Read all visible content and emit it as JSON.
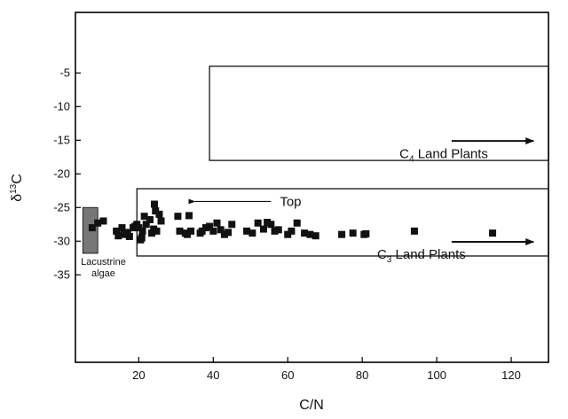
{
  "chart_data": {
    "type": "scatter",
    "xlabel": "C/N",
    "ylabel": {
      "base": "δ",
      "sup": "13",
      "tail": "C"
    },
    "xlim": [
      3,
      130
    ],
    "ylim": [
      -48,
      4
    ],
    "xticks": [
      20,
      40,
      60,
      80,
      100,
      120
    ],
    "yticks": [
      -35,
      -30,
      -25,
      -20,
      -15,
      -10,
      -5
    ],
    "grid": false,
    "marker": "square",
    "colors": {
      "points": "#111111",
      "lacustrine_fill": "#777777",
      "frame": "#000000"
    },
    "points": [
      [
        7.5,
        -28.0
      ],
      [
        9,
        -27.3
      ],
      [
        10.5,
        -27.0
      ],
      [
        14,
        -28.5
      ],
      [
        14.5,
        -29.2
      ],
      [
        15.5,
        -28.0
      ],
      [
        16,
        -29.0
      ],
      [
        17,
        -28.7
      ],
      [
        17.5,
        -29.3
      ],
      [
        18.5,
        -28.0
      ],
      [
        19,
        -27.8
      ],
      [
        19.5,
        -27.5
      ],
      [
        20,
        -28.0
      ],
      [
        20.5,
        -29.8
      ],
      [
        20.8,
        -29.5
      ],
      [
        21,
        -28.5
      ],
      [
        21.5,
        -26.3
      ],
      [
        22,
        -27.5
      ],
      [
        23,
        -26.8
      ],
      [
        23.5,
        -28.8
      ],
      [
        24,
        -28.2
      ],
      [
        24.2,
        -24.5
      ],
      [
        24.5,
        -25.5
      ],
      [
        24.8,
        -28.5
      ],
      [
        25.5,
        -26.0
      ],
      [
        26,
        -27.0
      ],
      [
        30.5,
        -26.3
      ],
      [
        31,
        -28.5
      ],
      [
        32.5,
        -28.8
      ],
      [
        33,
        -29.0
      ],
      [
        33.5,
        -26.2
      ],
      [
        34,
        -28.5
      ],
      [
        36.5,
        -28.8
      ],
      [
        37,
        -28.5
      ],
      [
        38,
        -28.0
      ],
      [
        39,
        -27.8
      ],
      [
        40,
        -28.5
      ],
      [
        41,
        -27.3
      ],
      [
        42,
        -28.3
      ],
      [
        43,
        -29.0
      ],
      [
        44,
        -28.7
      ],
      [
        45,
        -27.5
      ],
      [
        49,
        -28.5
      ],
      [
        50.5,
        -28.8
      ],
      [
        52,
        -27.3
      ],
      [
        53.5,
        -28.2
      ],
      [
        54.5,
        -27.2
      ],
      [
        55.5,
        -27.5
      ],
      [
        56.5,
        -28.5
      ],
      [
        57.5,
        -28.3
      ],
      [
        60,
        -29.0
      ],
      [
        61,
        -28.5
      ],
      [
        62.5,
        -27.3
      ],
      [
        64.5,
        -28.8
      ],
      [
        66,
        -29.0
      ],
      [
        67.5,
        -29.2
      ],
      [
        74.5,
        -29.0
      ],
      [
        77.5,
        -28.8
      ],
      [
        80.5,
        -29.0
      ],
      [
        81,
        -28.9
      ],
      [
        94,
        -28.5
      ],
      [
        115,
        -28.8
      ]
    ],
    "regions": [
      {
        "id": "c4",
        "x": [
          39,
          130
        ],
        "y": [
          -18,
          -4
        ],
        "label": {
          "base": "C",
          "sub": "4",
          "tail": " Land Plants"
        }
      },
      {
        "id": "c3",
        "x": [
          19.5,
          130
        ],
        "y": [
          -32.2,
          -22.2
        ],
        "label": {
          "base": "C",
          "sub": "3",
          "tail": " Land Plants"
        }
      }
    ],
    "lacustrine": {
      "x": [
        5,
        9
      ],
      "y": [
        -31.8,
        -25
      ],
      "label_lines": [
        "Lacustrine",
        "algae"
      ]
    },
    "annotations": [
      {
        "id": "top",
        "text": "Top",
        "arrow_from": [
          55.5,
          -24.1
        ],
        "arrow_to": [
          35,
          -24.1
        ]
      }
    ],
    "region_arrows": [
      {
        "id": "c4-arrow",
        "from": [
          104,
          -15.1
        ],
        "to": [
          126,
          -15.1
        ]
      },
      {
        "id": "c3-arrow",
        "from": [
          104,
          -30.1
        ],
        "to": [
          126,
          -30.1
        ]
      }
    ]
  }
}
